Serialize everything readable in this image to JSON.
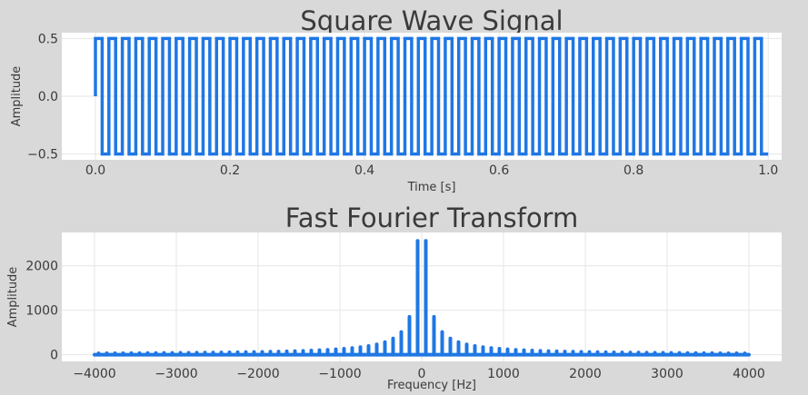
{
  "chart_data": [
    {
      "type": "line",
      "title": "Square Wave Signal",
      "xlabel": "Time [s]",
      "ylabel": "Amplitude",
      "xlim": [
        -0.05,
        1.02
      ],
      "ylim": [
        -0.55,
        0.55
      ],
      "xticks": [
        0.0,
        0.2,
        0.4,
        0.6,
        0.8,
        1.0
      ],
      "xtick_labels": [
        "0.0",
        "0.2",
        "0.4",
        "0.6",
        "0.8",
        "1.0"
      ],
      "yticks": [
        -0.5,
        0.0,
        0.5
      ],
      "ytick_labels": [
        "−0.5",
        "0.0",
        "0.5"
      ],
      "grid": true,
      "color": "#1f77e4",
      "series": [
        {
          "signal": "square",
          "frequency_hz": 50,
          "amplitude": 0.5,
          "start_value": 0.0,
          "t_start": 0.0,
          "t_end": 1.0
        }
      ]
    },
    {
      "type": "line",
      "title": "Fast Fourier Transform",
      "xlabel": "Frequency [Hz]",
      "ylabel": "Amplitude",
      "xlim": [
        -4400,
        4400
      ],
      "ylim": [
        -150,
        2750
      ],
      "xticks": [
        -4000,
        -3000,
        -2000,
        -1000,
        0,
        1000,
        2000,
        3000,
        4000
      ],
      "xtick_labels": [
        "−4000",
        "−3000",
        "−2000",
        "−1000",
        "0",
        "1000",
        "2000",
        "3000",
        "4000"
      ],
      "yticks": [
        0,
        1000,
        2000
      ],
      "ytick_labels": [
        "0",
        "1000",
        "2000"
      ],
      "grid": true,
      "color": "#1f77e4",
      "series": [
        {
          "x_range": [
            -4000,
            4000
          ],
          "harmonic_spacing_hz": 100,
          "first_harmonic_hz": 50,
          "fundamental_amplitude": 2560
        }
      ]
    }
  ]
}
